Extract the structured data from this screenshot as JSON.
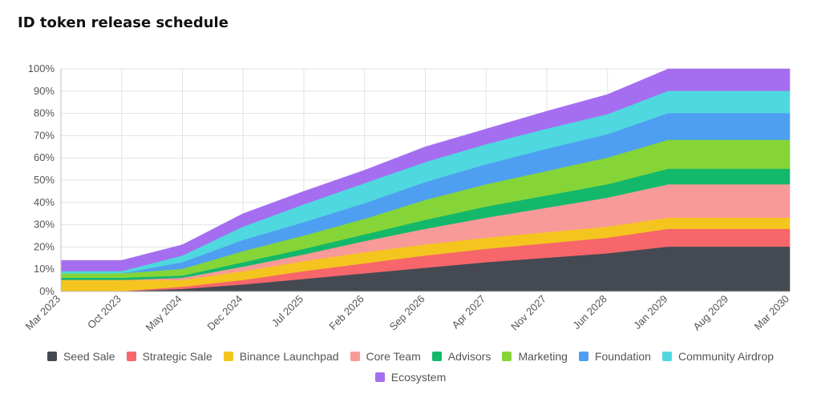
{
  "title": "ID token release schedule",
  "chart_data": {
    "type": "area",
    "stacked": true,
    "title": "ID token release schedule",
    "xlabel": "",
    "ylabel": "",
    "ylim": [
      0,
      100
    ],
    "y_ticks": [
      "0%",
      "10%",
      "20%",
      "30%",
      "40%",
      "50%",
      "60%",
      "70%",
      "80%",
      "90%",
      "100%"
    ],
    "x": [
      "Mar 2023",
      "Oct 2023",
      "May 2024",
      "Dec 2024",
      "Jul 2025",
      "Feb 2026",
      "Sep 2026",
      "Apr 2027",
      "Nov 2027",
      "Jun 2028",
      "Jan 2029",
      "Aug 2029",
      "Mar 2030"
    ],
    "grid": true,
    "legend_position": "bottom",
    "series": [
      {
        "name": "Seed Sale",
        "color": "#454a52",
        "values": [
          0,
          0,
          1,
          3,
          5.5,
          8,
          10.5,
          13,
          15,
          17,
          20,
          20,
          20
        ]
      },
      {
        "name": "Strategic Sale",
        "color": "#f7666b",
        "values": [
          0,
          0,
          1,
          2,
          3.5,
          4.5,
          5.5,
          6,
          6.5,
          7,
          8,
          8,
          8
        ]
      },
      {
        "name": "Binance Launchpad",
        "color": "#f5c51f",
        "values": [
          5,
          5,
          3,
          4,
          4.5,
          5,
          5,
          5,
          5,
          5,
          5,
          5,
          5
        ]
      },
      {
        "name": "Core Team",
        "color": "#f89a98",
        "values": [
          0,
          0,
          1,
          2,
          3,
          5,
          7,
          9,
          11,
          13,
          15,
          15,
          15
        ]
      },
      {
        "name": "Advisors",
        "color": "#13b86b",
        "values": [
          1,
          1,
          1,
          2,
          2.5,
          3,
          4,
          5,
          5.5,
          6,
          7,
          7,
          7
        ]
      },
      {
        "name": "Marketing",
        "color": "#85d538",
        "values": [
          2,
          2,
          3,
          5,
          6,
          7,
          9,
          10,
          11,
          12,
          13,
          13,
          13
        ]
      },
      {
        "name": "Foundation",
        "color": "#4e9ff1",
        "values": [
          0,
          0,
          3,
          5,
          6,
          7,
          8,
          9,
          10,
          10.5,
          12,
          12,
          12
        ]
      },
      {
        "name": "Community Airdrop",
        "color": "#4fd8df",
        "values": [
          1,
          1,
          3,
          6,
          8,
          9,
          9,
          9,
          9,
          9,
          10,
          10,
          10
        ]
      },
      {
        "name": "Ecosystem",
        "color": "#a56ef0",
        "values": [
          5,
          5,
          5,
          6,
          6,
          6,
          7,
          7,
          8,
          9,
          10,
          10,
          10
        ]
      }
    ]
  }
}
